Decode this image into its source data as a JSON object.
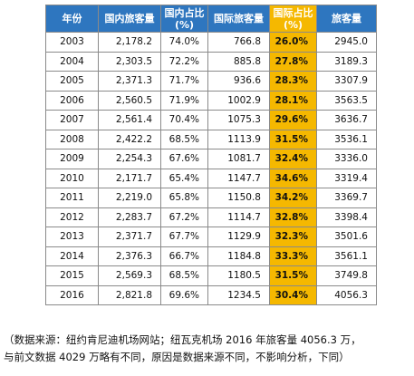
{
  "table": {
    "headers": [
      {
        "label": "年份"
      },
      {
        "label": "国内旅客量"
      },
      {
        "label": "国内占比\n(%)"
      },
      {
        "label": "国际旅客量"
      },
      {
        "label": "国际占比\n(%)"
      },
      {
        "label": "旅客量"
      }
    ],
    "rows": [
      [
        "2003",
        "2,178.2",
        "74.0%",
        "766.8",
        "26.0%",
        "2945.0"
      ],
      [
        "2004",
        "2,303.5",
        "72.2%",
        "885.8",
        "27.8%",
        "3189.3"
      ],
      [
        "2005",
        "2,371.3",
        "71.7%",
        "936.6",
        "28.3%",
        "3307.9"
      ],
      [
        "2006",
        "2,560.5",
        "71.9%",
        "1002.9",
        "28.1%",
        "3563.5"
      ],
      [
        "2007",
        "2,561.4",
        "70.4%",
        "1075.3",
        "29.6%",
        "3636.7"
      ],
      [
        "2008",
        "2,422.2",
        "68.5%",
        "1113.9",
        "31.5%",
        "3536.1"
      ],
      [
        "2009",
        "2,254.3",
        "67.6%",
        "1081.7",
        "32.4%",
        "3336.0"
      ],
      [
        "2010",
        "2,171.7",
        "65.4%",
        "1147.7",
        "34.6%",
        "3319.4"
      ],
      [
        "2011",
        "2,219.0",
        "65.8%",
        "1150.8",
        "34.2%",
        "3369.7"
      ],
      [
        "2012",
        "2,283.7",
        "67.2%",
        "1114.7",
        "32.8%",
        "3398.4"
      ],
      [
        "2013",
        "2,371.7",
        "67.7%",
        "1129.9",
        "32.3%",
        "3501.6"
      ],
      [
        "2014",
        "2,376.3",
        "66.7%",
        "1184.8",
        "33.3%",
        "3561.1"
      ],
      [
        "2015",
        "2,569.3",
        "68.5%",
        "1180.5",
        "31.5%",
        "3749.8"
      ],
      [
        "2016",
        "2,821.8",
        "69.6%",
        "1234.5",
        "30.4%",
        "4056.3"
      ]
    ],
    "highlight_column": 4,
    "colors": {
      "header_bg": "#2e76bf",
      "highlight_bg": "#f5b800"
    }
  },
  "note": {
    "line1": "（数据来源：纽约肯尼迪机场网站；纽瓦克机场 2016 年旅客量 4056.3 万，",
    "line2": "与前文数据 4029 万略有不同，原因是数据来源不同，不影响分析，下同）"
  }
}
